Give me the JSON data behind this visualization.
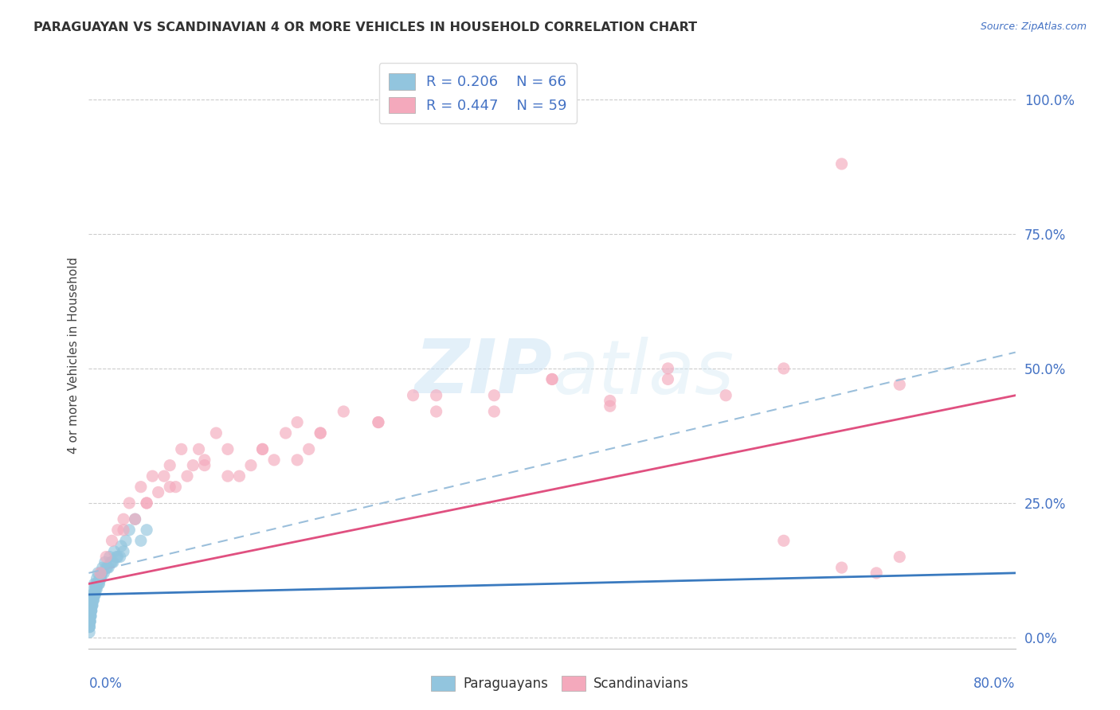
{
  "title": "PARAGUAYAN VS SCANDINAVIAN 4 OR MORE VEHICLES IN HOUSEHOLD CORRELATION CHART",
  "source_text": "Source: ZipAtlas.com",
  "ylabel": "4 or more Vehicles in Household",
  "ytick_values": [
    0,
    25,
    50,
    75,
    100
  ],
  "xlim": [
    0,
    80
  ],
  "ylim": [
    -2,
    107
  ],
  "watermark_zip": "ZIP",
  "watermark_atlas": "atlas",
  "r_paraguayan": 0.206,
  "n_paraguayan": 66,
  "r_scandinavian": 0.447,
  "n_scandinavian": 59,
  "color_paraguayan": "#92c5de",
  "color_scandinavian": "#f4a9bc",
  "color_line_paraguayan": "#3a7abf",
  "color_line_scandinavian": "#e05080",
  "color_dashed": "#9bbfdb",
  "background_color": "#ffffff",
  "grid_color": "#cccccc",
  "par_x": [
    0.05,
    0.08,
    0.1,
    0.12,
    0.15,
    0.18,
    0.2,
    0.22,
    0.25,
    0.28,
    0.3,
    0.35,
    0.4,
    0.45,
    0.5,
    0.55,
    0.6,
    0.65,
    0.7,
    0.8,
    0.9,
    1.0,
    1.1,
    1.2,
    1.4,
    1.6,
    1.8,
    2.0,
    2.2,
    2.5,
    2.8,
    3.0,
    3.2,
    0.05,
    0.06,
    0.07,
    0.09,
    0.11,
    0.13,
    0.16,
    0.19,
    0.23,
    0.27,
    0.32,
    0.38,
    0.42,
    0.48,
    0.52,
    0.58,
    0.68,
    0.75,
    0.85,
    0.95,
    1.05,
    1.15,
    1.3,
    1.5,
    1.7,
    1.9,
    2.1,
    2.4,
    2.7,
    3.5,
    4.0,
    4.5,
    5.0
  ],
  "par_y": [
    2,
    3,
    4,
    3,
    5,
    4,
    6,
    5,
    7,
    6,
    8,
    7,
    8,
    9,
    10,
    8,
    9,
    10,
    11,
    12,
    10,
    11,
    12,
    13,
    14,
    13,
    15,
    14,
    16,
    15,
    17,
    16,
    18,
    1,
    2,
    2,
    3,
    3,
    4,
    4,
    5,
    5,
    6,
    6,
    7,
    7,
    8,
    8,
    9,
    9,
    10,
    10,
    11,
    11,
    12,
    12,
    13,
    13,
    14,
    14,
    15,
    15,
    20,
    22,
    18,
    20
  ],
  "scan_x": [
    1.0,
    1.5,
    2.0,
    2.5,
    3.0,
    3.5,
    4.0,
    4.5,
    5.0,
    5.5,
    6.0,
    6.5,
    7.0,
    7.5,
    8.0,
    8.5,
    9.0,
    9.5,
    10.0,
    11.0,
    12.0,
    13.0,
    14.0,
    15.0,
    16.0,
    17.0,
    18.0,
    19.0,
    20.0,
    22.0,
    25.0,
    28.0,
    30.0,
    35.0,
    40.0,
    45.0,
    50.0,
    55.0,
    60.0,
    65.0,
    70.0,
    3.0,
    5.0,
    7.0,
    10.0,
    12.0,
    15.0,
    18.0,
    20.0,
    25.0,
    30.0,
    35.0,
    40.0,
    45.0,
    50.0,
    60.0,
    70.0,
    68.0,
    65.0
  ],
  "scan_y": [
    12,
    15,
    18,
    20,
    22,
    25,
    22,
    28,
    25,
    30,
    27,
    30,
    32,
    28,
    35,
    30,
    32,
    35,
    33,
    38,
    35,
    30,
    32,
    35,
    33,
    38,
    40,
    35,
    38,
    42,
    40,
    45,
    42,
    45,
    48,
    43,
    48,
    45,
    50,
    88,
    47,
    20,
    25,
    28,
    32,
    30,
    35,
    33,
    38,
    40,
    45,
    42,
    48,
    44,
    50,
    18,
    15,
    12,
    13
  ]
}
